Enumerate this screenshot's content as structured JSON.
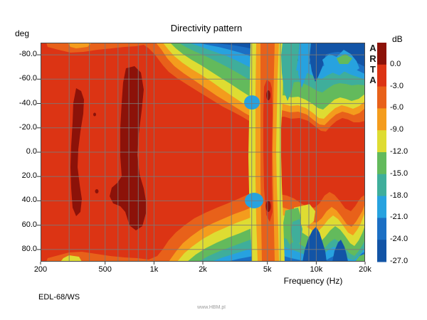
{
  "title": "Directivity pattern",
  "y_axis": {
    "unit_label": "deg",
    "ticks": [
      "-80.0",
      "-60.0",
      "-40.0",
      "-20.0",
      "0.0",
      "20.0",
      "40.0",
      "60.0",
      "80.0"
    ]
  },
  "x_axis": {
    "label": "Frequency (Hz)",
    "ticks": [
      "200",
      "500",
      "1k",
      "2k",
      "5k",
      "10k",
      "20k"
    ]
  },
  "colorbar": {
    "unit_label": "dB",
    "ticks": [
      "0.0",
      "-3.0",
      "-6.0",
      "-9.0",
      "-12.0",
      "-15.0",
      "-18.0",
      "-21.0",
      "-24.0",
      "-27.0"
    ],
    "colors": [
      "#8c1209",
      "#dc3414",
      "#e8611a",
      "#f49c1d",
      "#dedc32",
      "#63ba5c",
      "#3fae9b",
      "#27a2df",
      "#1b6fc4",
      "#1254a6"
    ]
  },
  "branding": {
    "vertical_text": "ARTA"
  },
  "footer": {
    "device_label": "EDL-68/WS",
    "watermark": "www.HBM.pl"
  },
  "grid_color": "#7a7a7a",
  "frame_color": "#4a4a4a",
  "chart_data": {
    "type": "heatmap",
    "title": "Directivity pattern",
    "xlabel": "Frequency (Hz)",
    "ylabel": "deg",
    "x_scale": "log",
    "x_range_hz": [
      200,
      20000
    ],
    "y_range_deg": [
      -90,
      90
    ],
    "x_ticks": [
      "200",
      "500",
      "1k",
      "2k",
      "5k",
      "10k",
      "20k"
    ],
    "y_ticks_deg": [
      -80,
      -60,
      -40,
      -20,
      0,
      20,
      40,
      60,
      80
    ],
    "level_ticks_db": [
      0,
      -3,
      -6,
      -9,
      -12,
      -15,
      -18,
      -21,
      -24,
      -27
    ],
    "legend_position": "right",
    "grid": true,
    "sampled_frequencies_hz": [
      200,
      300,
      400,
      500,
      700,
      1000,
      1500,
      2000,
      3000,
      4000,
      5000,
      6000,
      8000,
      10000,
      15000,
      20000
    ],
    "sampled_angles_deg": [
      -90,
      -60,
      -30,
      0,
      30,
      60,
      90
    ],
    "estimated_level_db": [
      [
        -2,
        -1,
        -1,
        -1,
        -1,
        -1,
        -2
      ],
      [
        -4,
        0.5,
        0.5,
        0.5,
        0.5,
        0.5,
        -8
      ],
      [
        -4,
        -1,
        0.5,
        -1,
        0.5,
        -1,
        -8
      ],
      [
        -3,
        -1,
        -1,
        -1,
        0.5,
        -1,
        -4
      ],
      [
        -3,
        0.5,
        0.5,
        0.5,
        0.5,
        0.5,
        -3
      ],
      [
        -2,
        -1,
        -1,
        -1,
        -1,
        -1,
        -4
      ],
      [
        -10,
        -2,
        -1,
        -1,
        -1,
        -2,
        -13
      ],
      [
        -17,
        -5,
        -2,
        -1,
        -1,
        -3,
        -17
      ],
      [
        -26,
        -12,
        -3,
        -1,
        -2,
        -8,
        -20
      ],
      [
        -22,
        -15,
        -4,
        -1,
        -2,
        -10,
        -19
      ],
      [
        -7,
        -5,
        -2,
        -1,
        -2,
        -4,
        -7
      ],
      [
        -14,
        -12,
        -3,
        -1,
        -2,
        -9,
        -13
      ],
      [
        -22,
        -16,
        -4,
        -1,
        -3,
        -12,
        -21
      ],
      [
        -26,
        -19,
        -5,
        -1,
        -4,
        -14,
        -26
      ],
      [
        -24,
        -16,
        -6,
        -1,
        -5,
        -10,
        -22
      ],
      [
        -26,
        -17,
        -7,
        -1,
        -4,
        -13,
        -18
      ]
    ],
    "notes": "Dark-red (>0 dB) ridges at 300-380 Hz and 550-900 Hz spanning ±55/±70 deg; wide red lobe below 1.5 kHz; directivity narrows 2-4 kHz; high-level vertical stripe near 5 kHz reaching ±90 deg; deep blue (-24..-27 dB) regions beyond 8 kHz at wide angles; red on-axis band continues to 20 kHz within about ±25 deg."
  }
}
